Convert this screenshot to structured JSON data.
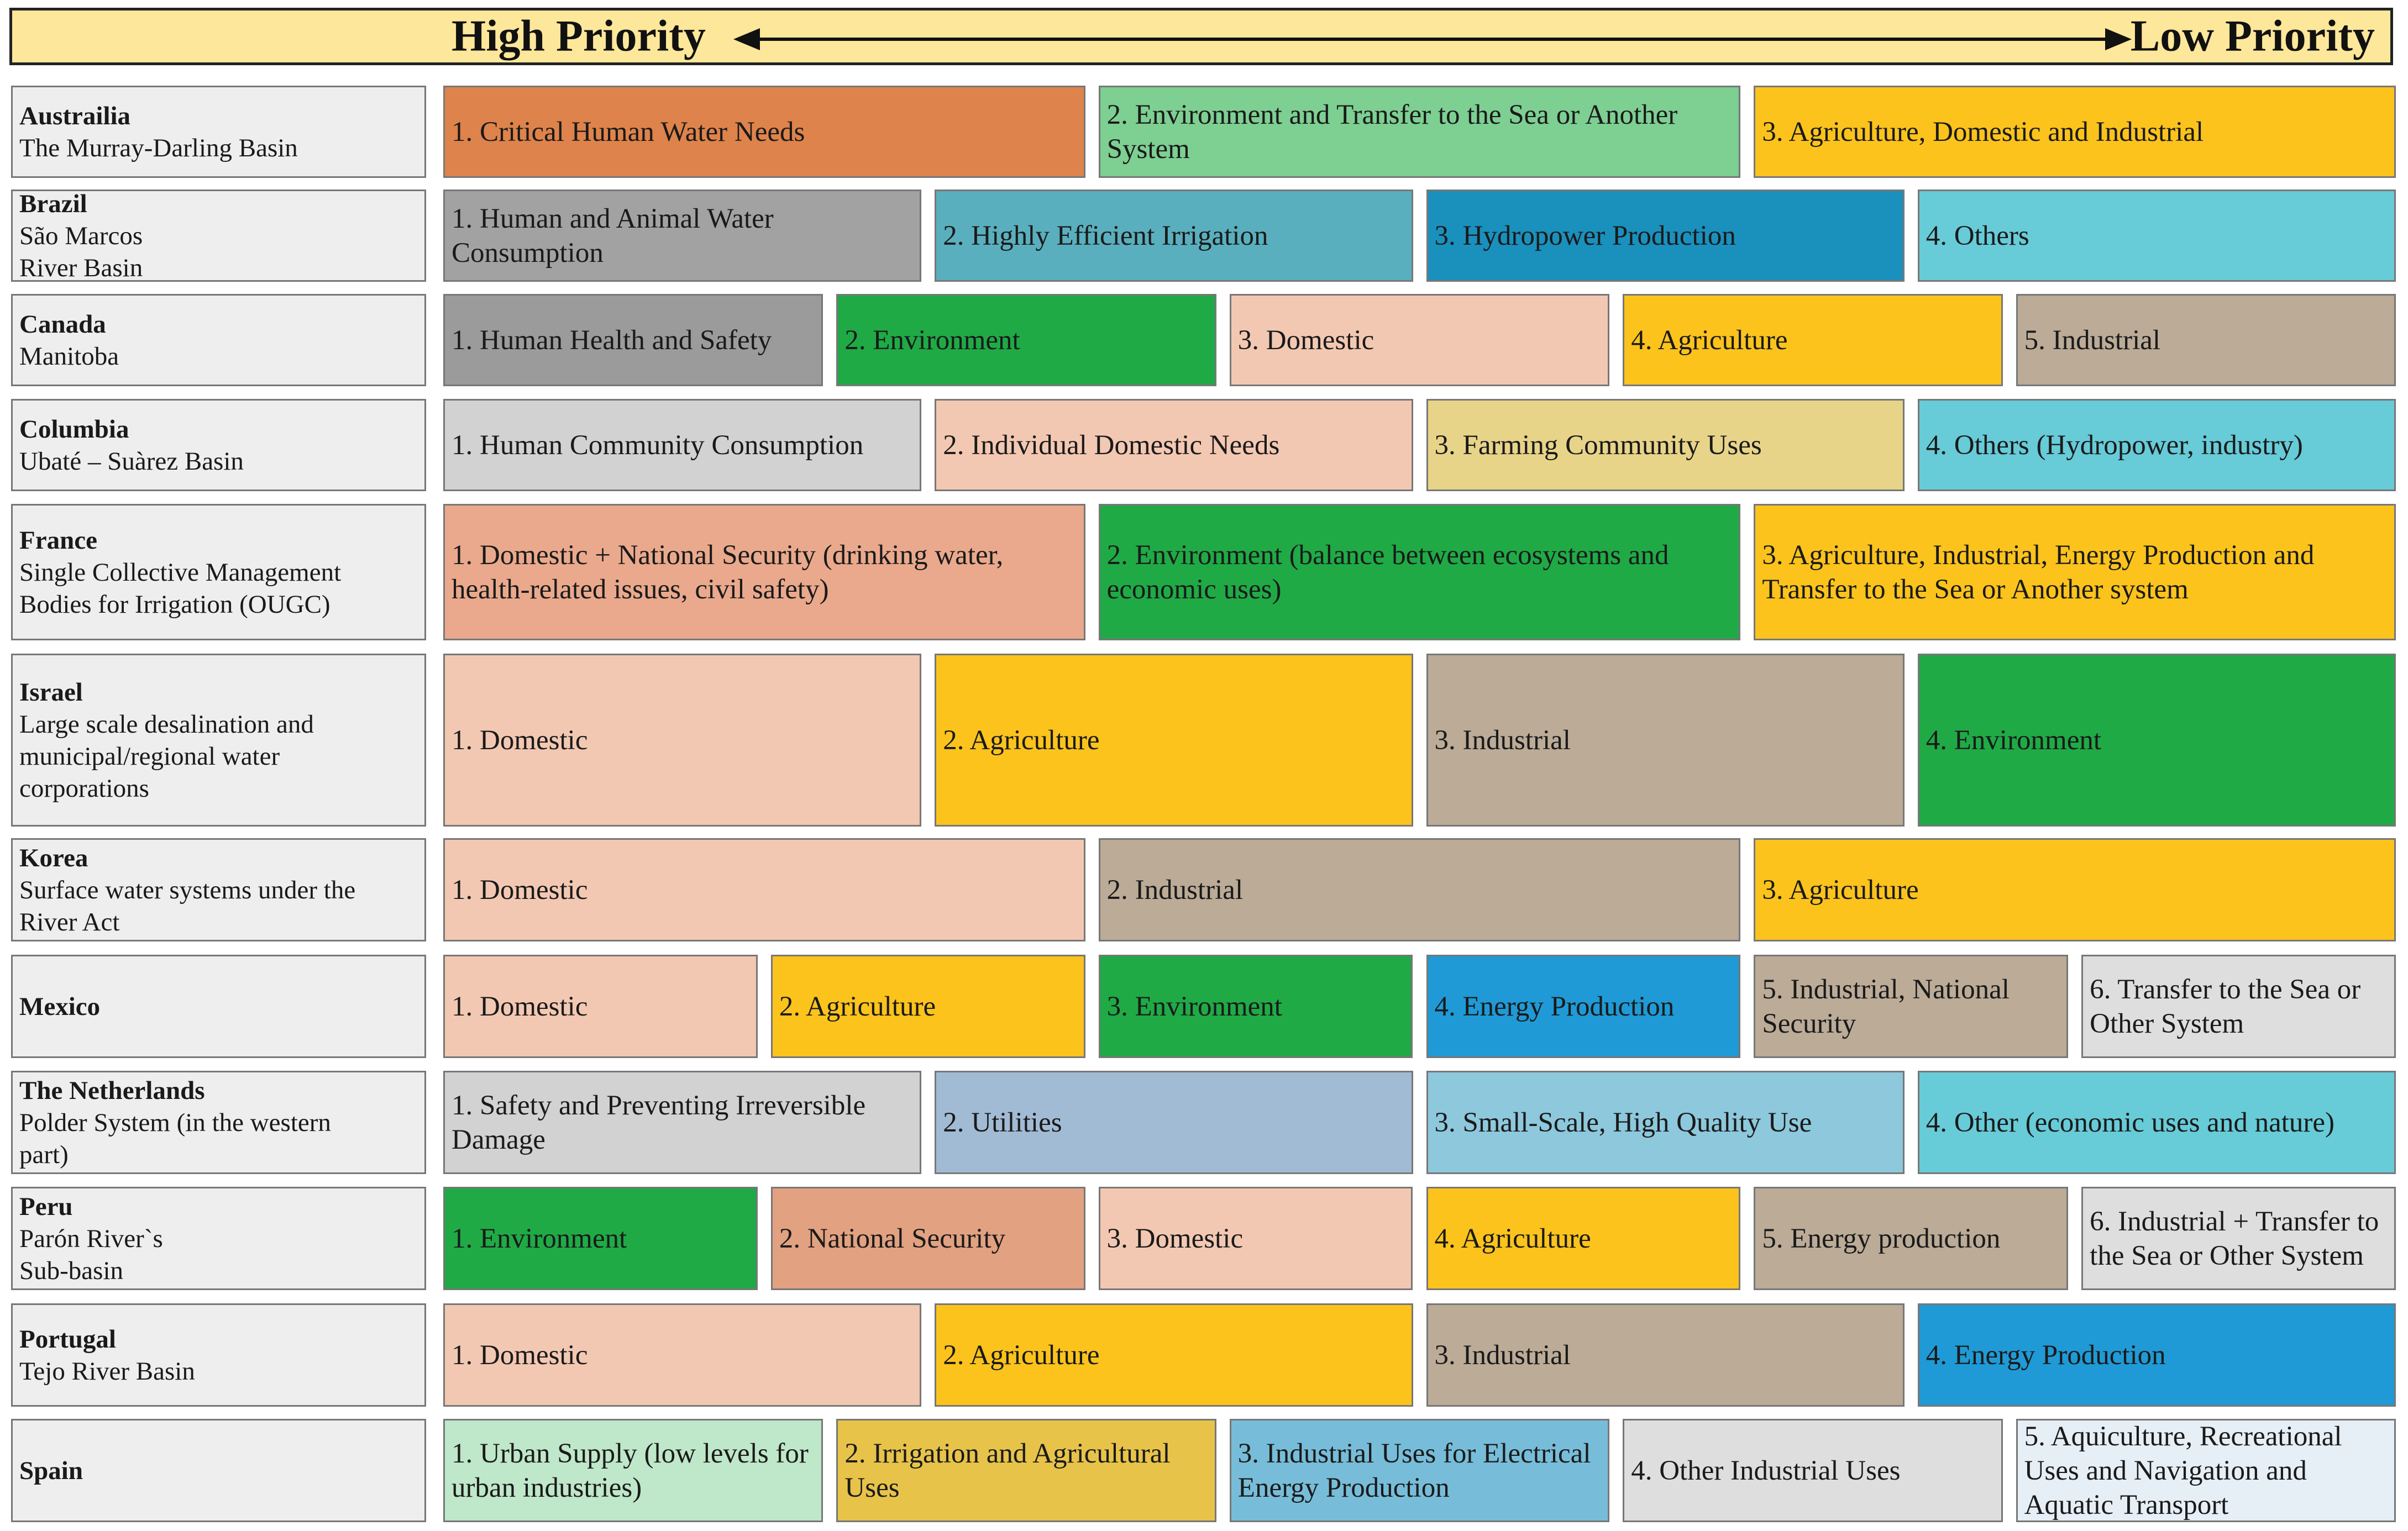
{
  "header": {
    "high_label": "High Priority",
    "low_label": "Low Priority"
  },
  "colors": {
    "orange": "#de834b",
    "mint": "#7dcf92",
    "gold": "#fbc31c",
    "gray": "#a2a2a2",
    "teal": "#5aafbe",
    "blue_dark": "#1a90bd",
    "cyan": "#67cbd8",
    "gray_dark": "#9b9b9b",
    "green": "#1faa46",
    "peach": "#f3c8b2",
    "taupe": "#bbab97",
    "light_gray": "#d2d2d2",
    "khaki": "#e8d489",
    "salmon": "#eaa98c",
    "blue": "#1f9ad6",
    "very_light_gray": "#dedede",
    "grayblue": "#a2bbd4",
    "lightblue": "#8dc8dc",
    "salmon_dark": "#e2a181",
    "light_green": "#bfe7c9",
    "mustard": "#e7c34a",
    "skyblue": "#77bdd9",
    "ice": "#e6eef6"
  },
  "rows": [
    {
      "country": "Austrailia",
      "region": "The Murray-Darling Basin",
      "categories": [
        {
          "label": "1. Critical Human Water Needs",
          "color": "#de834b"
        },
        {
          "label": "2. Environment and Transfer to the Sea or Another System",
          "color": "#7dcf92"
        },
        {
          "label": "3. Agriculture, Domestic and Industrial",
          "color": "#fbc31c"
        }
      ]
    },
    {
      "country": "Brazil",
      "region": "São Marcos\nRiver Basin",
      "categories": [
        {
          "label": "1. Human and Animal Water Consumption",
          "color": "#a2a2a2"
        },
        {
          "label": "2. Highly Efficient Irrigation",
          "color": "#5aafbe"
        },
        {
          "label": "3. Hydropower Production",
          "color": "#1a90bd"
        },
        {
          "label": "4. Others",
          "color": "#67cbd8"
        }
      ]
    },
    {
      "country": "Canada",
      "region": "Manitoba",
      "categories": [
        {
          "label": "1. Human Health and Safety",
          "color": "#9b9b9b"
        },
        {
          "label": "2. Environment",
          "color": "#1faa46"
        },
        {
          "label": "3. Domestic",
          "color": "#f3c8b2"
        },
        {
          "label": "4. Agriculture",
          "color": "#fbc31c"
        },
        {
          "label": "5. Industrial",
          "color": "#bbab97"
        }
      ]
    },
    {
      "country": "Columbia",
      "region": "Ubaté – Suàrez Basin",
      "categories": [
        {
          "label": "1. Human Community Consumption",
          "color": "#d2d2d2"
        },
        {
          "label": "2. Individual Domestic Needs",
          "color": "#f3c8b2"
        },
        {
          "label": "3. Farming Community Uses",
          "color": "#e8d489"
        },
        {
          "label": "4. Others (Hydropower, industry)",
          "color": "#67cbd8"
        }
      ]
    },
    {
      "country": "France",
      "region": "Single Collective Management\nBodies for Irrigation (OUGC)",
      "categories": [
        {
          "label": "1. Domestic + National Security (drinking water, health-related issues, civil safety)",
          "color": "#eaa98c"
        },
        {
          "label": "2. Environment (balance between ecosystems and economic uses)",
          "color": "#1faa46"
        },
        {
          "label": "3. Agriculture, Industrial, Energy Production and Transfer to the Sea or Another system",
          "color": "#fbc31c"
        }
      ]
    },
    {
      "country": "Israel",
      "region": "Large scale desalination and\nmunicipal/regional water\ncorporations",
      "categories": [
        {
          "label": "1. Domestic",
          "color": "#f3c8b2"
        },
        {
          "label": "2. Agriculture",
          "color": "#fbc31c"
        },
        {
          "label": "3. Industrial",
          "color": "#bbab97"
        },
        {
          "label": "4. Environment",
          "color": "#1faa46"
        }
      ]
    },
    {
      "country": "Korea",
      "region": "Surface water systems under the\nRiver Act",
      "categories": [
        {
          "label": "1. Domestic",
          "color": "#f3c8b2"
        },
        {
          "label": "2. Industrial",
          "color": "#bbab97"
        },
        {
          "label": "3. Agriculture",
          "color": "#fbc31c"
        }
      ]
    },
    {
      "country": "Mexico",
      "region": "",
      "categories": [
        {
          "label": "1. Domestic",
          "color": "#f3c8b2"
        },
        {
          "label": "2. Agriculture",
          "color": "#fbc31c"
        },
        {
          "label": "3. Environment",
          "color": "#1faa46"
        },
        {
          "label": "4. Energy Production",
          "color": "#1f9ad6"
        },
        {
          "label": "5. Industrial, National Security",
          "color": "#bbab97"
        },
        {
          "label": "6. Transfer to the Sea or Other System",
          "color": "#dedede"
        }
      ]
    },
    {
      "country": "The Netherlands",
      "region": "Polder System (in the western\npart)",
      "categories": [
        {
          "label": "1. Safety and Preventing Irreversible Damage",
          "color": "#d2d2d2"
        },
        {
          "label": "2. Utilities",
          "color": "#a2bbd4"
        },
        {
          "label": "3. Small-Scale, High Quality Use",
          "color": "#8dc8dc"
        },
        {
          "label": "4. Other (economic uses and nature)",
          "color": "#67cbd8"
        }
      ]
    },
    {
      "country": "Peru",
      "region": "Parón River`s\nSub-basin",
      "categories": [
        {
          "label": "1. Environment",
          "color": "#1faa46"
        },
        {
          "label": "2. National Security",
          "color": "#e2a181"
        },
        {
          "label": "3. Domestic",
          "color": "#f3c8b2"
        },
        {
          "label": "4. Agriculture",
          "color": "#fbc31c"
        },
        {
          "label": "5. Energy production",
          "color": "#bbab97"
        },
        {
          "label": "6. Industrial + Transfer to the Sea or Other System",
          "color": "#dedede"
        }
      ]
    },
    {
      "country": "Portugal",
      "region": "Tejo River Basin",
      "categories": [
        {
          "label": "1. Domestic",
          "color": "#f3c8b2"
        },
        {
          "label": "2. Agriculture",
          "color": "#fbc31c"
        },
        {
          "label": "3. Industrial",
          "color": "#bbab97"
        },
        {
          "label": "4. Energy Production",
          "color": "#1f9ad6"
        }
      ]
    },
    {
      "country": "Spain",
      "region": "",
      "categories": [
        {
          "label": "1. Urban Supply (low levels for urban industries)",
          "color": "#bfe7c9"
        },
        {
          "label": "2. Irrigation and Agricultural Uses",
          "color": "#e7c34a"
        },
        {
          "label": "3. Industrial Uses for Electrical Energy Production",
          "color": "#77bdd9"
        },
        {
          "label": "4. Other Industrial Uses",
          "color": "#dedede"
        },
        {
          "label": "5. Aquiculture, Recreational Uses and Navigation and Aquatic Transport",
          "color": "#e6eef6"
        }
      ]
    }
  ]
}
